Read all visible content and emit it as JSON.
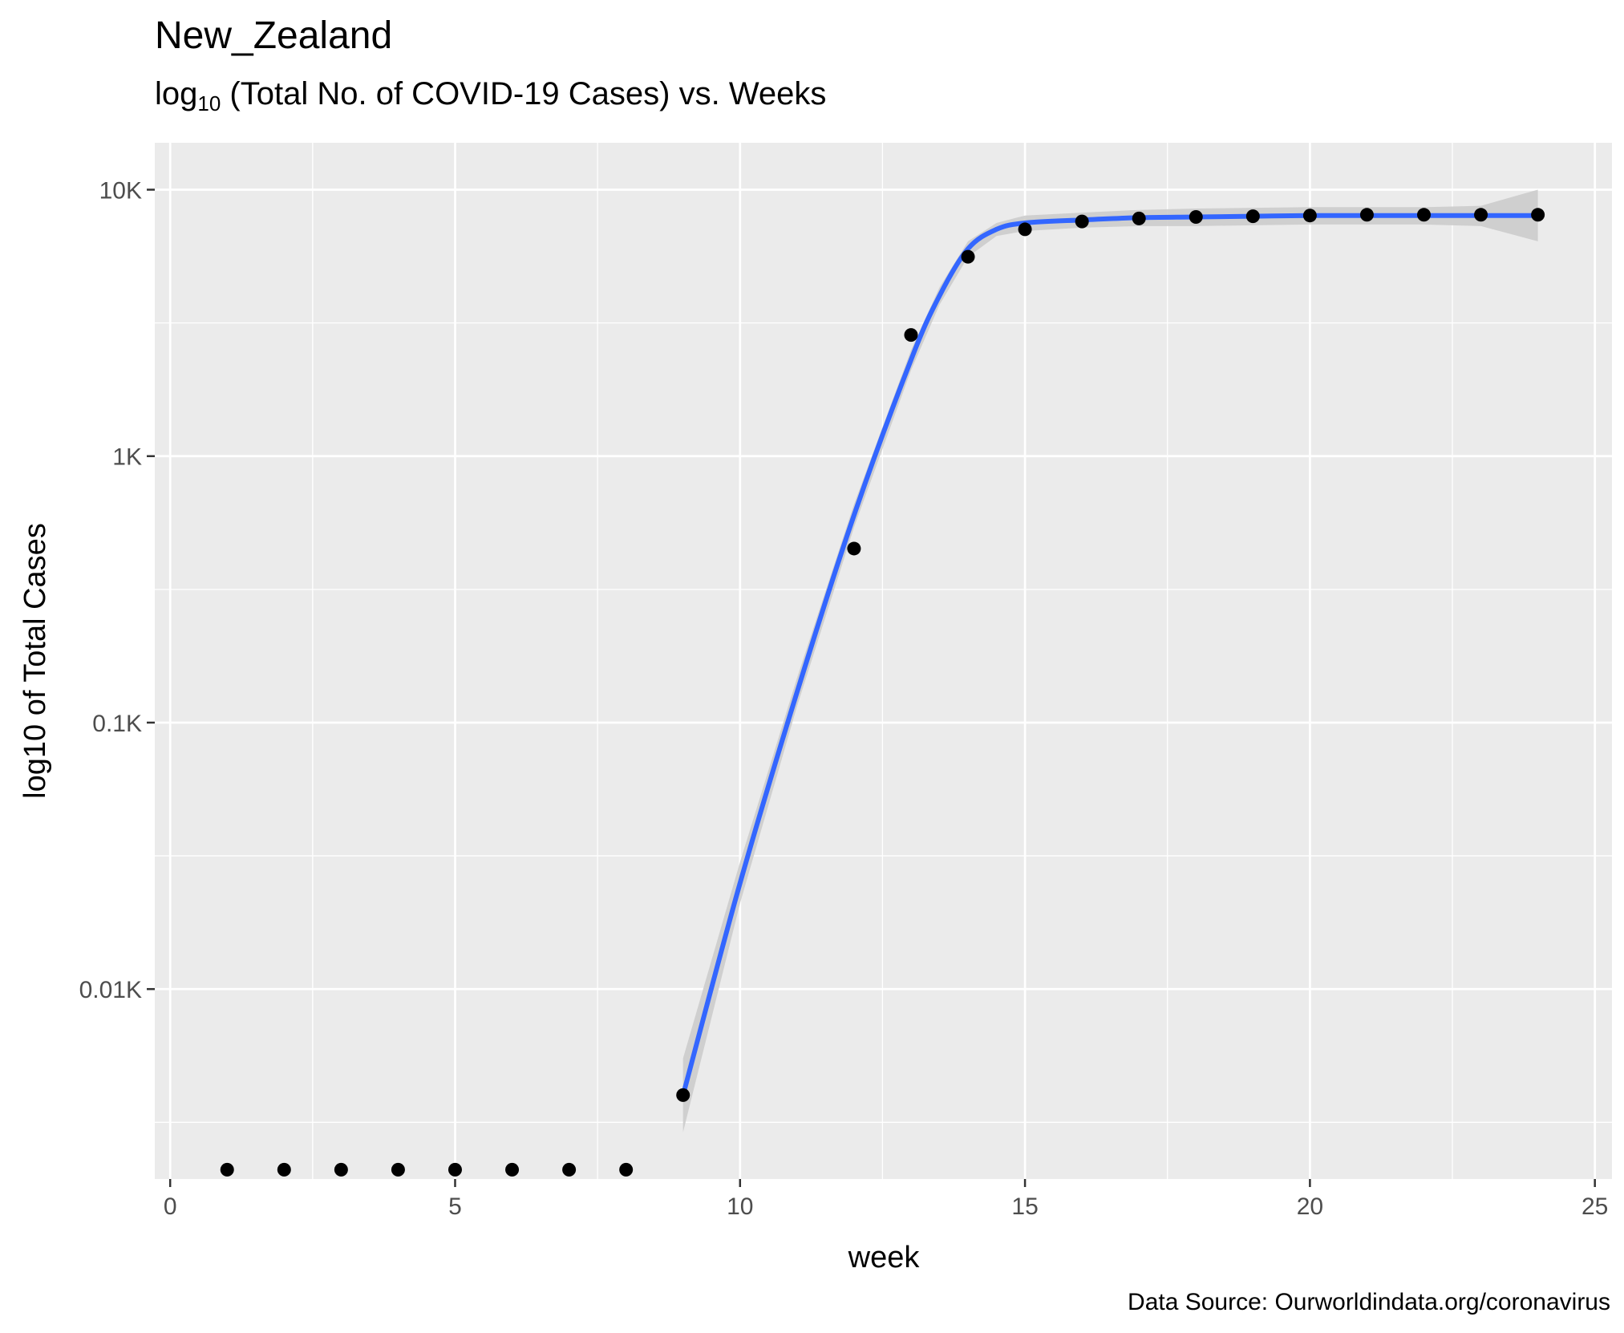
{
  "title": "New_Zealand",
  "subtitle": {
    "prefix": "log",
    "subscript": "10",
    "rest": " (Total No. of COVID-19 Cases) vs. Weeks"
  },
  "caption": "Data Source: Ourworldindata.org/coronavirus",
  "colors": {
    "panel": "#ebebeb",
    "grid": "#ffffff",
    "points": "#000000",
    "fit_line": "#3366ff",
    "ribbon": "#cccccc"
  },
  "chart_data": {
    "type": "scatter",
    "xlabel": "week",
    "ylabel": "log10 of Total Cases",
    "x_scale": "linear",
    "y_scale": "log10",
    "xlim": [
      0,
      25
    ],
    "ylim": [
      0.0021,
      15
    ],
    "x_ticks": [
      {
        "value": 0,
        "label": "0"
      },
      {
        "value": 5,
        "label": "5"
      },
      {
        "value": 10,
        "label": "10"
      },
      {
        "value": 15,
        "label": "15"
      },
      {
        "value": 20,
        "label": "20"
      },
      {
        "value": 25,
        "label": "25"
      }
    ],
    "y_ticks": [
      {
        "value": 0.01,
        "label": "0.01K"
      },
      {
        "value": 0.1,
        "label": "0.1K"
      },
      {
        "value": 1,
        "label": "1K"
      },
      {
        "value": 10,
        "label": "10K"
      }
    ],
    "y_units": "thousands of cases",
    "grid": true,
    "series": [
      {
        "type": "scatter",
        "x": [
          1,
          2,
          3,
          4,
          5,
          6,
          7,
          8,
          9,
          12,
          13,
          14,
          15,
          16,
          17,
          18,
          19,
          20,
          21,
          22,
          23,
          24
        ],
        "y": [
          0.0021,
          0.0021,
          0.0021,
          0.0021,
          0.0021,
          0.0021,
          0.0021,
          0.0021,
          0.004,
          0.45,
          2.85,
          5.6,
          7.1,
          7.6,
          7.8,
          7.9,
          7.95,
          8.0,
          8.05,
          8.05,
          8.05,
          8.05
        ]
      },
      {
        "type": "line",
        "x": [
          9,
          10,
          11,
          12,
          13,
          13.5,
          14,
          14.5,
          15,
          16,
          17,
          18,
          19,
          20,
          21,
          22,
          23,
          24
        ],
        "y": [
          0.004,
          0.025,
          0.13,
          0.6,
          2.3,
          4.0,
          6.0,
          7.1,
          7.5,
          7.7,
          7.85,
          7.9,
          7.95,
          8.0,
          8.0,
          8.0,
          8.0,
          8.0
        ]
      },
      {
        "type": "confidence_band",
        "x": [
          9,
          10,
          11,
          12,
          13,
          13.5,
          14,
          14.5,
          15,
          16,
          17,
          18,
          19,
          20,
          21,
          22,
          23,
          24
        ],
        "lower": [
          0.0029,
          0.021,
          0.115,
          0.54,
          2.1,
          3.7,
          5.6,
          6.7,
          7.0,
          7.2,
          7.3,
          7.3,
          7.35,
          7.4,
          7.4,
          7.4,
          7.3,
          6.4
        ],
        "upper": [
          0.0055,
          0.03,
          0.147,
          0.66,
          2.5,
          4.3,
          6.4,
          7.5,
          8.0,
          8.2,
          8.4,
          8.5,
          8.55,
          8.6,
          8.6,
          8.6,
          8.7,
          10.0
        ]
      }
    ]
  }
}
